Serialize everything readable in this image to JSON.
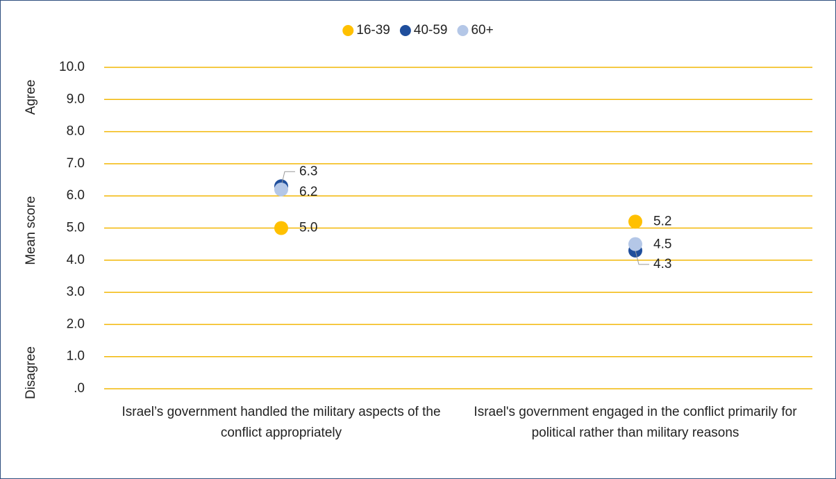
{
  "chart_data": {
    "type": "dot",
    "y_label": "Mean score",
    "y_label_top": "Agree",
    "y_label_bottom": "Disagree",
    "categories": [
      "Israel’s government handled the military aspects of the conflict appropriately",
      "Israel's government engaged in the conflict primarily for political rather than military reasons"
    ],
    "series": [
      {
        "name": "16-39",
        "color": "#ffc000",
        "values": [
          5.0,
          5.2
        ],
        "value_labels": [
          "5.0",
          "5.2"
        ]
      },
      {
        "name": "40-59",
        "color": "#1f4e9c",
        "values": [
          6.3,
          4.3
        ],
        "value_labels": [
          "6.3",
          "4.3"
        ]
      },
      {
        "name": "60+",
        "color": "#b4c7e7",
        "values": [
          6.2,
          4.5
        ],
        "value_labels": [
          "6.2",
          "4.5"
        ]
      }
    ],
    "ylim": [
      0,
      10
    ],
    "yticks": [
      {
        "value": 0,
        "label": ".0"
      },
      {
        "value": 1,
        "label": "1.0"
      },
      {
        "value": 2,
        "label": "2.0"
      },
      {
        "value": 3,
        "label": "3.0"
      },
      {
        "value": 4,
        "label": "4.0"
      },
      {
        "value": 5,
        "label": "5.0"
      },
      {
        "value": 6,
        "label": "6.0"
      },
      {
        "value": 7,
        "label": "7.0"
      },
      {
        "value": 8,
        "label": "8.0"
      },
      {
        "value": 9,
        "label": "9.0"
      },
      {
        "value": 10,
        "label": "10.0"
      }
    ],
    "grid": true,
    "grid_color": "#f2b705",
    "legend": "top"
  }
}
